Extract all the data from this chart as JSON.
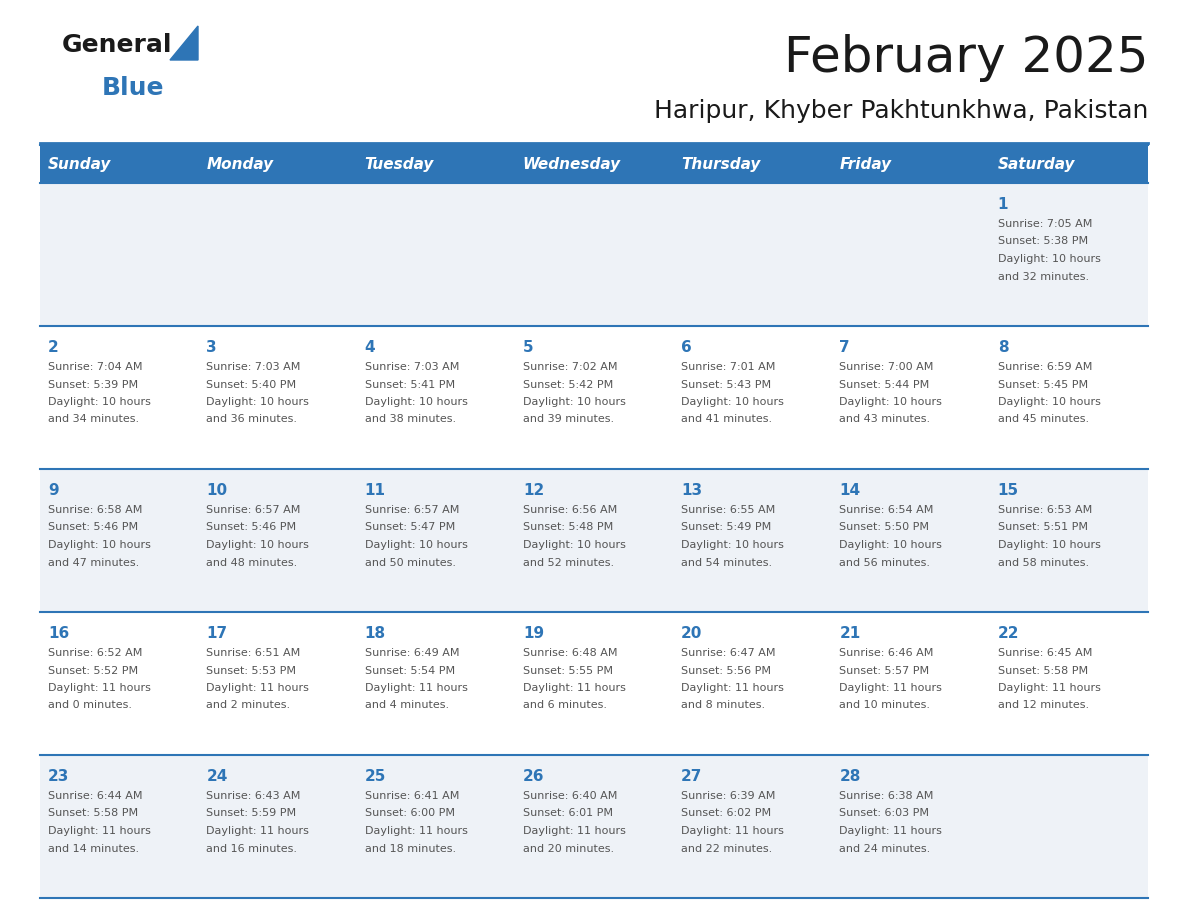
{
  "title": "February 2025",
  "subtitle": "Haripur, Khyber Pakhtunkhwa, Pakistan",
  "header_bg": "#2E75B6",
  "header_text_color": "#FFFFFF",
  "cell_border_color": "#2E75B6",
  "day_number_color": "#2E75B6",
  "info_text_color": "#555555",
  "bg_color": "#FFFFFF",
  "alt_row_bg": "#EEF2F7",
  "days_of_week": [
    "Sunday",
    "Monday",
    "Tuesday",
    "Wednesday",
    "Thursday",
    "Friday",
    "Saturday"
  ],
  "calendar_data": [
    [
      {
        "day": null,
        "sunrise": null,
        "sunset": null,
        "daylight": null
      },
      {
        "day": null,
        "sunrise": null,
        "sunset": null,
        "daylight": null
      },
      {
        "day": null,
        "sunrise": null,
        "sunset": null,
        "daylight": null
      },
      {
        "day": null,
        "sunrise": null,
        "sunset": null,
        "daylight": null
      },
      {
        "day": null,
        "sunrise": null,
        "sunset": null,
        "daylight": null
      },
      {
        "day": null,
        "sunrise": null,
        "sunset": null,
        "daylight": null
      },
      {
        "day": 1,
        "sunrise": "7:05 AM",
        "sunset": "5:38 PM",
        "daylight": "10 hours\nand 32 minutes."
      }
    ],
    [
      {
        "day": 2,
        "sunrise": "7:04 AM",
        "sunset": "5:39 PM",
        "daylight": "10 hours\nand 34 minutes."
      },
      {
        "day": 3,
        "sunrise": "7:03 AM",
        "sunset": "5:40 PM",
        "daylight": "10 hours\nand 36 minutes."
      },
      {
        "day": 4,
        "sunrise": "7:03 AM",
        "sunset": "5:41 PM",
        "daylight": "10 hours\nand 38 minutes."
      },
      {
        "day": 5,
        "sunrise": "7:02 AM",
        "sunset": "5:42 PM",
        "daylight": "10 hours\nand 39 minutes."
      },
      {
        "day": 6,
        "sunrise": "7:01 AM",
        "sunset": "5:43 PM",
        "daylight": "10 hours\nand 41 minutes."
      },
      {
        "day": 7,
        "sunrise": "7:00 AM",
        "sunset": "5:44 PM",
        "daylight": "10 hours\nand 43 minutes."
      },
      {
        "day": 8,
        "sunrise": "6:59 AM",
        "sunset": "5:45 PM",
        "daylight": "10 hours\nand 45 minutes."
      }
    ],
    [
      {
        "day": 9,
        "sunrise": "6:58 AM",
        "sunset": "5:46 PM",
        "daylight": "10 hours\nand 47 minutes."
      },
      {
        "day": 10,
        "sunrise": "6:57 AM",
        "sunset": "5:46 PM",
        "daylight": "10 hours\nand 48 minutes."
      },
      {
        "day": 11,
        "sunrise": "6:57 AM",
        "sunset": "5:47 PM",
        "daylight": "10 hours\nand 50 minutes."
      },
      {
        "day": 12,
        "sunrise": "6:56 AM",
        "sunset": "5:48 PM",
        "daylight": "10 hours\nand 52 minutes."
      },
      {
        "day": 13,
        "sunrise": "6:55 AM",
        "sunset": "5:49 PM",
        "daylight": "10 hours\nand 54 minutes."
      },
      {
        "day": 14,
        "sunrise": "6:54 AM",
        "sunset": "5:50 PM",
        "daylight": "10 hours\nand 56 minutes."
      },
      {
        "day": 15,
        "sunrise": "6:53 AM",
        "sunset": "5:51 PM",
        "daylight": "10 hours\nand 58 minutes."
      }
    ],
    [
      {
        "day": 16,
        "sunrise": "6:52 AM",
        "sunset": "5:52 PM",
        "daylight": "11 hours\nand 0 minutes."
      },
      {
        "day": 17,
        "sunrise": "6:51 AM",
        "sunset": "5:53 PM",
        "daylight": "11 hours\nand 2 minutes."
      },
      {
        "day": 18,
        "sunrise": "6:49 AM",
        "sunset": "5:54 PM",
        "daylight": "11 hours\nand 4 minutes."
      },
      {
        "day": 19,
        "sunrise": "6:48 AM",
        "sunset": "5:55 PM",
        "daylight": "11 hours\nand 6 minutes."
      },
      {
        "day": 20,
        "sunrise": "6:47 AM",
        "sunset": "5:56 PM",
        "daylight": "11 hours\nand 8 minutes."
      },
      {
        "day": 21,
        "sunrise": "6:46 AM",
        "sunset": "5:57 PM",
        "daylight": "11 hours\nand 10 minutes."
      },
      {
        "day": 22,
        "sunrise": "6:45 AM",
        "sunset": "5:58 PM",
        "daylight": "11 hours\nand 12 minutes."
      }
    ],
    [
      {
        "day": 23,
        "sunrise": "6:44 AM",
        "sunset": "5:58 PM",
        "daylight": "11 hours\nand 14 minutes."
      },
      {
        "day": 24,
        "sunrise": "6:43 AM",
        "sunset": "5:59 PM",
        "daylight": "11 hours\nand 16 minutes."
      },
      {
        "day": 25,
        "sunrise": "6:41 AM",
        "sunset": "6:00 PM",
        "daylight": "11 hours\nand 18 minutes."
      },
      {
        "day": 26,
        "sunrise": "6:40 AM",
        "sunset": "6:01 PM",
        "daylight": "11 hours\nand 20 minutes."
      },
      {
        "day": 27,
        "sunrise": "6:39 AM",
        "sunset": "6:02 PM",
        "daylight": "11 hours\nand 22 minutes."
      },
      {
        "day": 28,
        "sunrise": "6:38 AM",
        "sunset": "6:03 PM",
        "daylight": "11 hours\nand 24 minutes."
      },
      {
        "day": null,
        "sunrise": null,
        "sunset": null,
        "daylight": null
      }
    ]
  ],
  "logo_general_color": "#1a1a1a",
  "logo_blue_color": "#2E75B6",
  "title_fontsize": 36,
  "subtitle_fontsize": 18,
  "header_fontsize": 11,
  "day_num_fontsize": 11,
  "info_fontsize": 8
}
